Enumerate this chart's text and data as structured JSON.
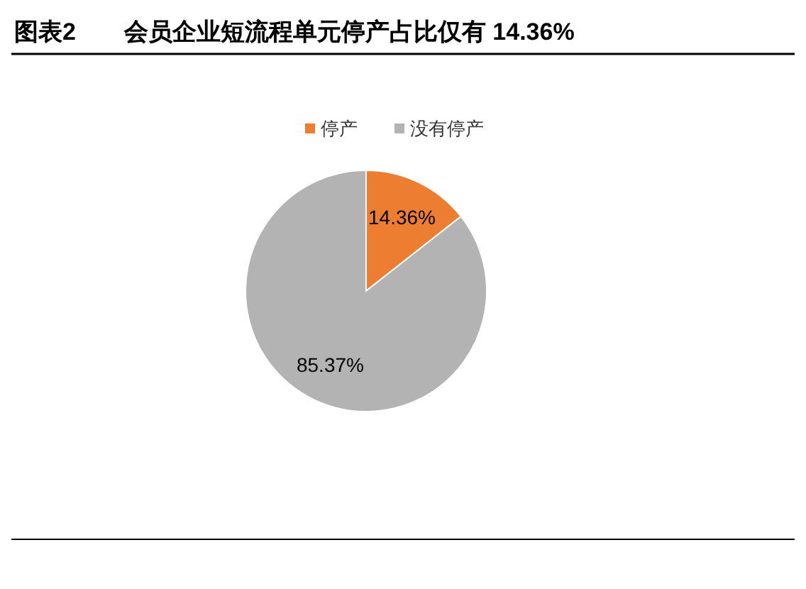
{
  "chart_data": {
    "type": "pie",
    "title": "图表2　　会员企业短流程单元停产占比仅有 14.36%",
    "categories": [
      "停产",
      "没有停产"
    ],
    "values": [
      14.36,
      85.37
    ],
    "colors": [
      "#ed7d31",
      "#b3b3b3"
    ],
    "value_labels": [
      "14.36%",
      "85.37%"
    ],
    "legend": "top"
  }
}
